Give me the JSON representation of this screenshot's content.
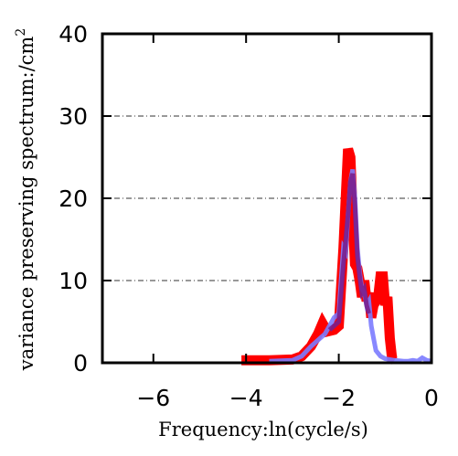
{
  "chart_data": {
    "type": "line",
    "title": "",
    "xlabel": "Frequency:ln(cycle/s)",
    "ylabel": "variance preserving spectrum:/cm",
    "ylabel_superscript": "2",
    "xlim": [
      -7.1,
      0
    ],
    "ylim": [
      0,
      40
    ],
    "xticks": [
      -6,
      -4,
      -2,
      0
    ],
    "xtick_labels": [
      "−6",
      "−4",
      "−2",
      "0"
    ],
    "yticks": [
      0,
      10,
      20,
      30,
      40
    ],
    "ytick_labels": [
      "0",
      "10",
      "20",
      "30",
      "40"
    ],
    "grid": {
      "axis": "y",
      "values": [
        10,
        20,
        30
      ],
      "style": "dash-dot"
    },
    "series": [
      {
        "color": "#ff0000",
        "x": [
          -4.1,
          -3.5,
          -3.0,
          -2.8,
          -2.6,
          -2.45,
          -2.35,
          -2.25,
          -2.1,
          -2.0,
          -1.9,
          -1.8,
          -1.75,
          -1.7,
          -1.65,
          -1.6,
          -1.55,
          -1.5,
          -1.45,
          -1.4,
          -1.35,
          -1.3,
          -1.25,
          -1.2,
          -1.15,
          -1.1,
          -1.05,
          -1.0,
          -0.95,
          -0.9,
          -0.85,
          -0.8
        ],
        "y": [
          0.3,
          0.3,
          0.4,
          0.8,
          2.0,
          3.5,
          4.8,
          3.8,
          4.0,
          4.5,
          14.0,
          26.0,
          25.0,
          18.0,
          12.0,
          11.5,
          10.0,
          8.0,
          10.0,
          7.5,
          8.5,
          5.5,
          7.0,
          7.5,
          8.0,
          10.5,
          10.5,
          7.0,
          8.0,
          3.0,
          0.5,
          0.3
        ]
      },
      {
        "color": "#7b7bff",
        "x": [
          -3.5,
          -3.0,
          -2.8,
          -2.6,
          -2.4,
          -2.3,
          -2.2,
          -2.1,
          -2.0,
          -1.95,
          -1.9,
          -1.85,
          -1.8,
          -1.75,
          -1.7,
          -1.65,
          -1.6,
          -1.55,
          -1.5,
          -1.45,
          -1.4,
          -1.35,
          -1.3,
          -1.25,
          -1.2,
          -1.1,
          -1.0,
          -0.9,
          -0.8,
          -0.6,
          -0.5,
          -0.4,
          -0.3,
          -0.2,
          -0.1,
          0.0
        ],
        "y": [
          0.2,
          0.3,
          0.8,
          2.0,
          3.0,
          3.5,
          4.5,
          5.5,
          6.0,
          10.0,
          14.0,
          13.5,
          18.0,
          22.0,
          23.5,
          20.0,
          14.0,
          11.0,
          9.0,
          8.5,
          7.0,
          7.5,
          4.5,
          3.0,
          1.5,
          0.8,
          0.5,
          0.4,
          0.3,
          0.2,
          0.2,
          0.3,
          0.2,
          0.6,
          0.3,
          0.2
        ]
      },
      {
        "color": "#7a1e8c",
        "x": [
          -2.2,
          -2.0,
          -1.9,
          -1.8,
          -1.75,
          -1.7,
          -1.65,
          -1.6,
          -1.55,
          -1.5,
          -1.45,
          -1.4,
          -1.35
        ],
        "y": [
          4.0,
          5.0,
          12.0,
          18.0,
          22.0,
          23.0,
          19.0,
          13.0,
          10.5,
          8.5,
          9.0,
          7.0,
          6.0
        ]
      }
    ]
  }
}
